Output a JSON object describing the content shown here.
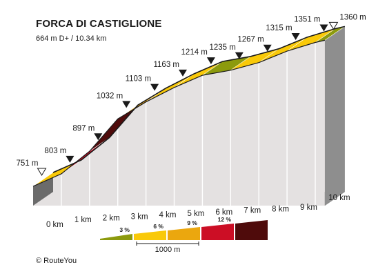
{
  "header": {
    "title": "FORCA DI CASTIGLIONE",
    "subtitle": "664 m D+ / 10.34 km"
  },
  "footer": {
    "copyright": "© RouteYou"
  },
  "chart_data": {
    "type": "area",
    "title": "FORCA DI CASTIGLIONE",
    "subtitle": "664 m D+ / 10.34 km",
    "x_unit": "km",
    "y_unit": "m",
    "xlim": [
      0,
      10.34
    ],
    "total_distance_km": 10.34,
    "start_elevation_m": 751,
    "km_ticks": [
      "0 km",
      "1 km",
      "2 km",
      "3 km",
      "4 km",
      "5 km",
      "6 km",
      "7 km",
      "8 km",
      "9 km",
      "10 km"
    ],
    "points": [
      {
        "km": 0,
        "elev": 751,
        "label": "751 m",
        "marker": "open"
      },
      {
        "km": 1,
        "elev": 803,
        "label": "803 m",
        "marker": "filled"
      },
      {
        "km": 2,
        "elev": 897,
        "label": "897 m",
        "marker": "filled"
      },
      {
        "km": 3,
        "elev": 1032,
        "label": "1032 m",
        "marker": "filled"
      },
      {
        "km": 4,
        "elev": 1103,
        "label": "1103 m",
        "marker": "filled"
      },
      {
        "km": 5,
        "elev": 1163,
        "label": "1163 m",
        "marker": "filled"
      },
      {
        "km": 6,
        "elev": 1214,
        "label": "1214 m",
        "marker": "filled"
      },
      {
        "km": 7,
        "elev": 1235,
        "label": "1235 m",
        "marker": "filled"
      },
      {
        "km": 8,
        "elev": 1267,
        "label": "1267 m",
        "marker": "filled"
      },
      {
        "km": 9,
        "elev": 1315,
        "label": "1315 m",
        "marker": "filled"
      },
      {
        "km": 10,
        "elev": 1351,
        "label": "1351 m",
        "marker": "filled"
      },
      {
        "km": 10.34,
        "elev": 1360,
        "label": "1360 m",
        "marker": "open"
      }
    ],
    "segment_colors": [
      "#f9c909",
      "#cc0e25",
      "#4f0b0b",
      "#eba70e",
      "#f9c909",
      "#f9c909",
      "#8c9a0d",
      "#f9c909",
      "#f9c909",
      "#f9c909",
      "#8c9a0d"
    ],
    "gradient_legend": {
      "items": [
        {
          "label": "3 %",
          "color": "#8c9a0d"
        },
        {
          "label": "6 %",
          "color": "#f9c909"
        },
        {
          "label": "9 %",
          "color": "#eba70e"
        },
        {
          "label": "12 %",
          "color": "#cc0e25"
        },
        {
          "label": "",
          "color": "#4f0b0b"
        }
      ],
      "scale_label": "1000 m"
    }
  }
}
